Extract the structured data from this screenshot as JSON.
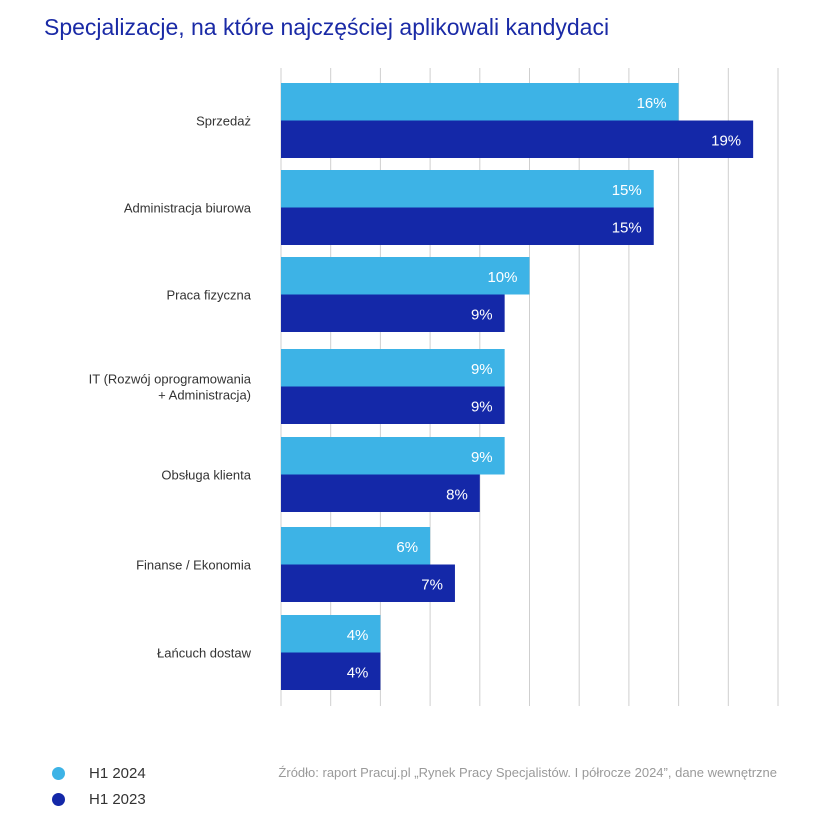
{
  "chart_data": {
    "type": "bar",
    "orientation": "horizontal",
    "title": "Specjalizacje, na które najczęściej aplikowali kandydaci",
    "categories": [
      [
        "Sprzedaż"
      ],
      [
        "Administracja biurowa"
      ],
      [
        "Praca fizyczna"
      ],
      [
        "IT (Rozwój oprogramowania",
        "+ Administracja)"
      ],
      [
        "Obsługa klienta"
      ],
      [
        "Finanse / Ekonomia"
      ],
      [
        "Łańcuch dostaw"
      ]
    ],
    "series": [
      {
        "name": "H1 2024",
        "color": "#3db3e6",
        "values": [
          16,
          15,
          10,
          9,
          9,
          6,
          4
        ]
      },
      {
        "name": "H1 2023",
        "color": "#1428a8",
        "values": [
          19,
          15,
          9,
          9,
          8,
          7,
          4
        ]
      }
    ],
    "xlim": [
      0,
      20
    ],
    "value_suffix": "%",
    "grid": true,
    "legend_position": "bottom-left"
  },
  "legend": [
    {
      "label": "H1 2024",
      "color": "#3db3e6"
    },
    {
      "label": "H1 2023",
      "color": "#1428a8"
    }
  ],
  "source": "Źródło: raport Pracuj.pl „Rynek Pracy Specjalistów. I półrocze 2024”, dane wewnętrzne"
}
